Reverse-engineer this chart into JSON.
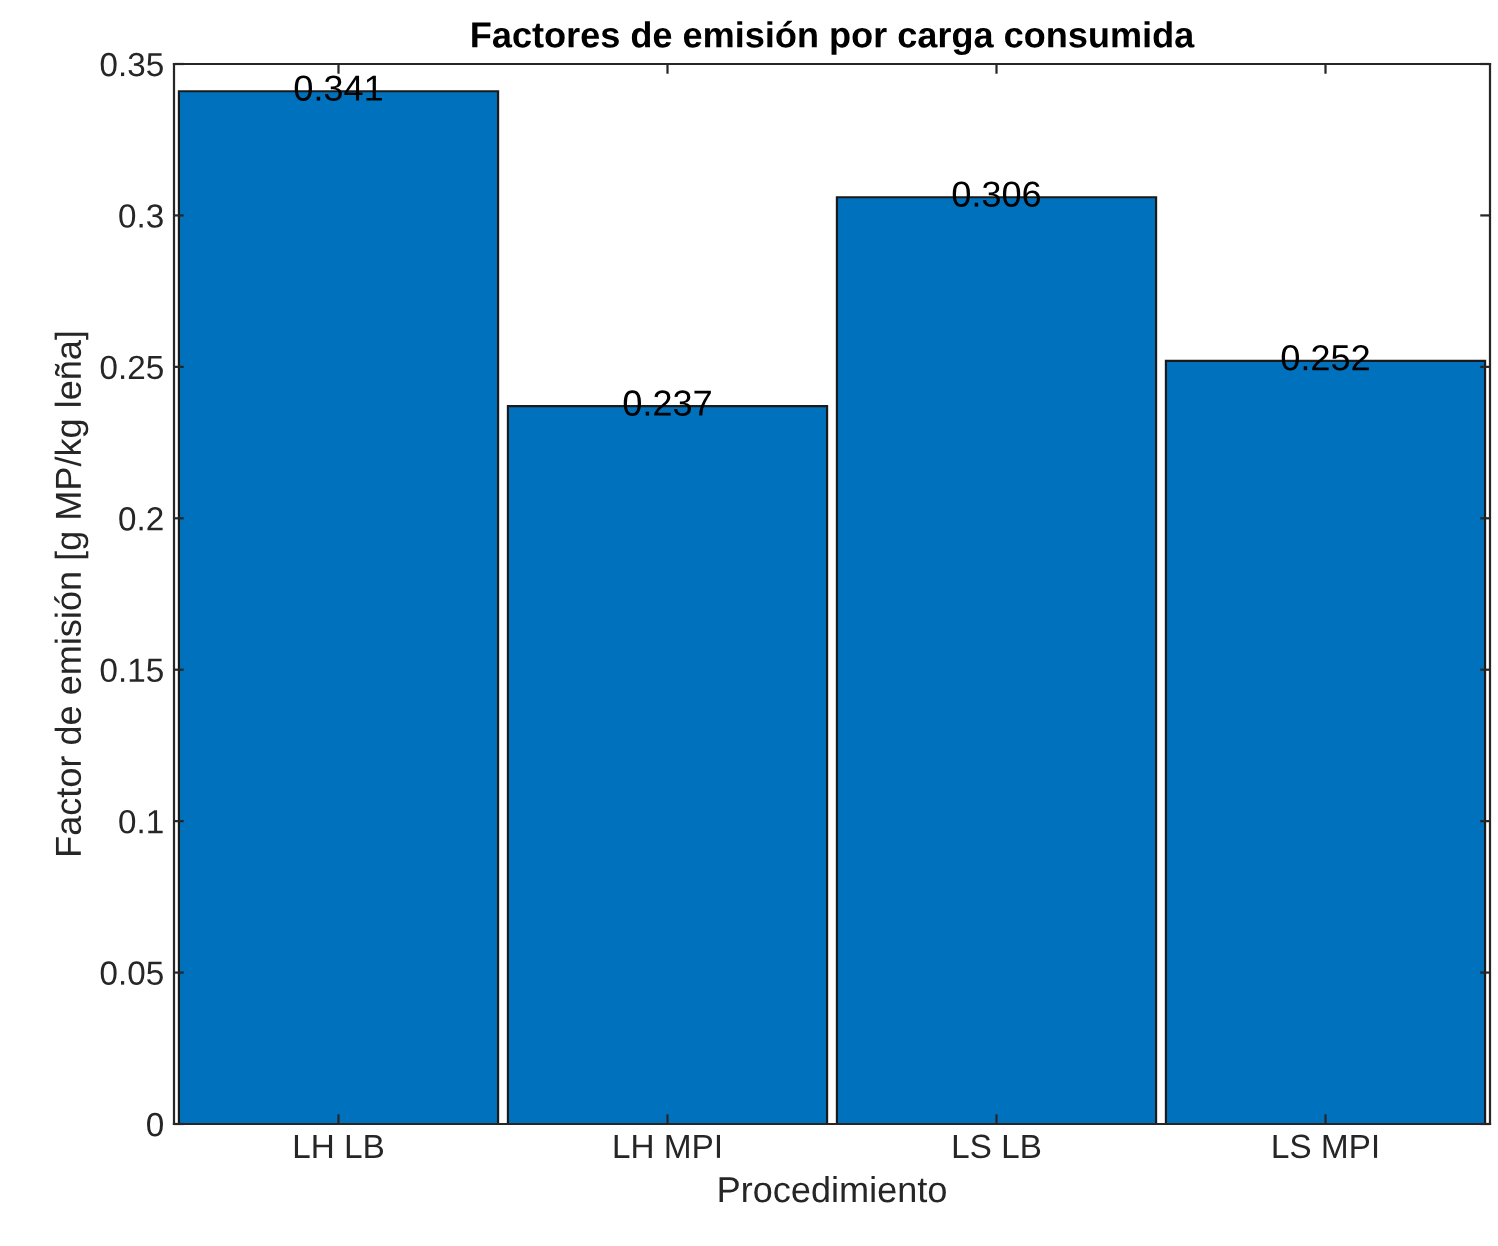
{
  "chart_data": {
    "type": "bar",
    "title": "Factores de emisión por carga consumida",
    "xlabel": "Procedimiento",
    "ylabel": "Factor de emisión [g MP/kg leña]",
    "categories": [
      "LH LB",
      "LH MPI",
      "LS LB",
      "LS MPI"
    ],
    "values": [
      0.341,
      0.237,
      0.306,
      0.252
    ],
    "color": "#0072bd",
    "ylim": [
      0,
      0.35
    ],
    "yticks": [
      0,
      0.05,
      0.1,
      0.15,
      0.2,
      0.25,
      0.3,
      0.35
    ],
    "data_labels": true,
    "grid": false,
    "legend": false
  }
}
